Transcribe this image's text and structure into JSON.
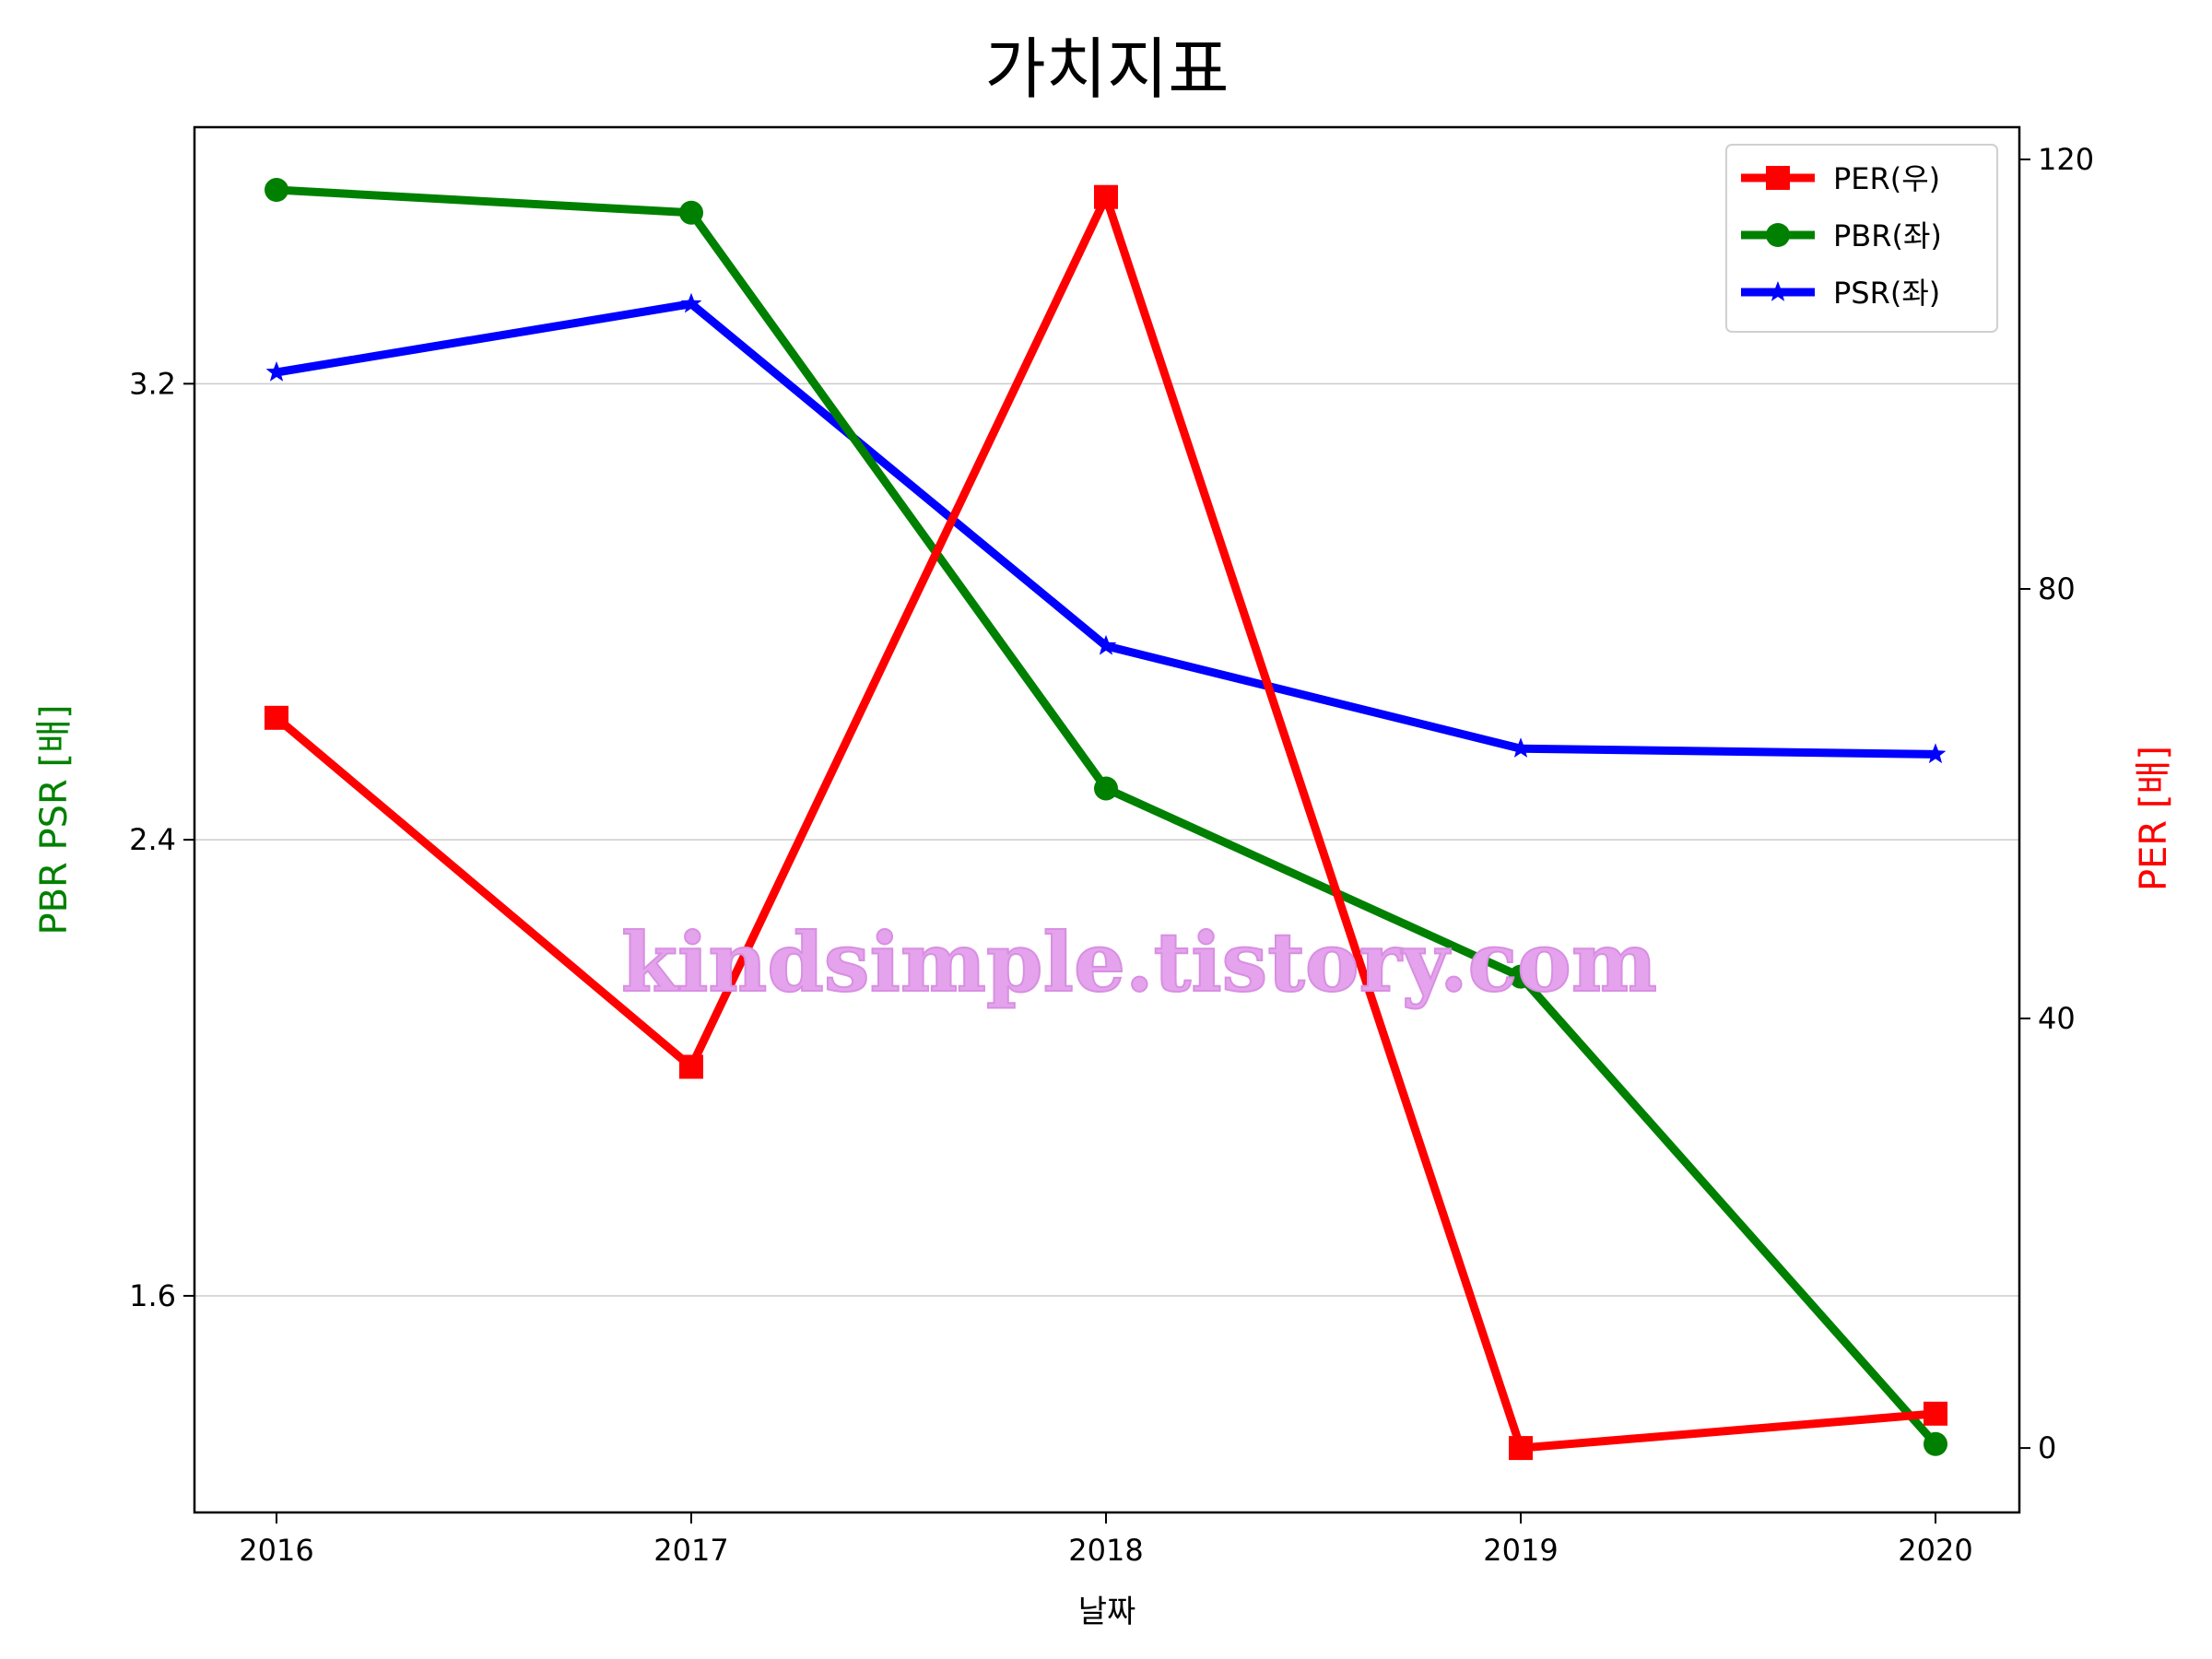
{
  "chart_data": {
    "type": "line",
    "title": "가치지표",
    "xlabel": "날짜",
    "ylabel_left": "PBR PSR [배]",
    "ylabel_right": "PER [배]",
    "x": [
      "2016",
      "2017",
      "2018",
      "2019",
      "2020"
    ],
    "ylim_left": [
      1.22,
      3.65
    ],
    "ylim_right": [
      -6,
      123
    ],
    "yticks_left": [
      1.6,
      2.4,
      3.2
    ],
    "yticks_right": [
      0,
      40,
      80,
      120
    ],
    "grid": "horizontal-left",
    "legend_position": "top-right",
    "series": [
      {
        "name": "PER(우)",
        "axis": "right",
        "color": "#ff0000",
        "marker": "square",
        "values": [
          68,
          35.5,
          116.5,
          0,
          3.2
        ]
      },
      {
        "name": "PBR(좌)",
        "axis": "left",
        "color": "#008000",
        "marker": "circle",
        "values": [
          3.54,
          3.5,
          2.49,
          2.16,
          1.34
        ]
      },
      {
        "name": "PSR(좌)",
        "axis": "left",
        "color": "#0000ff",
        "marker": "star",
        "values": [
          3.22,
          3.34,
          2.74,
          2.56,
          2.55
        ]
      }
    ]
  },
  "watermark": "kindsimple.tistory.com"
}
